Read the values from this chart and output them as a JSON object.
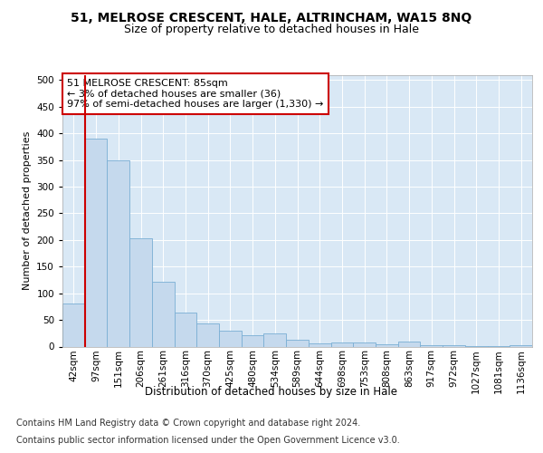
{
  "title1": "51, MELROSE CRESCENT, HALE, ALTRINCHAM, WA15 8NQ",
  "title2": "Size of property relative to detached houses in Hale",
  "xlabel": "Distribution of detached houses by size in Hale",
  "ylabel": "Number of detached properties",
  "categories": [
    "42sqm",
    "97sqm",
    "151sqm",
    "206sqm",
    "261sqm",
    "316sqm",
    "370sqm",
    "425sqm",
    "480sqm",
    "534sqm",
    "589sqm",
    "644sqm",
    "698sqm",
    "753sqm",
    "808sqm",
    "863sqm",
    "917sqm",
    "972sqm",
    "1027sqm",
    "1081sqm",
    "1136sqm"
  ],
  "values": [
    80,
    390,
    350,
    203,
    122,
    63,
    44,
    30,
    22,
    24,
    13,
    6,
    8,
    7,
    5,
    10,
    3,
    2,
    1,
    1,
    3
  ],
  "bar_color": "#c5d9ed",
  "bar_edge_color": "#7aaed4",
  "highlight_color": "#cc0000",
  "annotation_text": "51 MELROSE CRESCENT: 85sqm\n← 3% of detached houses are smaller (36)\n97% of semi-detached houses are larger (1,330) →",
  "annotation_box_color": "#ffffff",
  "annotation_box_edge": "#cc0000",
  "ylim": [
    0,
    510
  ],
  "yticks": [
    0,
    50,
    100,
    150,
    200,
    250,
    300,
    350,
    400,
    450,
    500
  ],
  "background_color": "#d9e8f5",
  "footer_text1": "Contains HM Land Registry data © Crown copyright and database right 2024.",
  "footer_text2": "Contains public sector information licensed under the Open Government Licence v3.0.",
  "title1_fontsize": 10,
  "title2_fontsize": 9,
  "xlabel_fontsize": 8.5,
  "ylabel_fontsize": 8,
  "tick_fontsize": 7.5,
  "annotation_fontsize": 8,
  "footer_fontsize": 7
}
